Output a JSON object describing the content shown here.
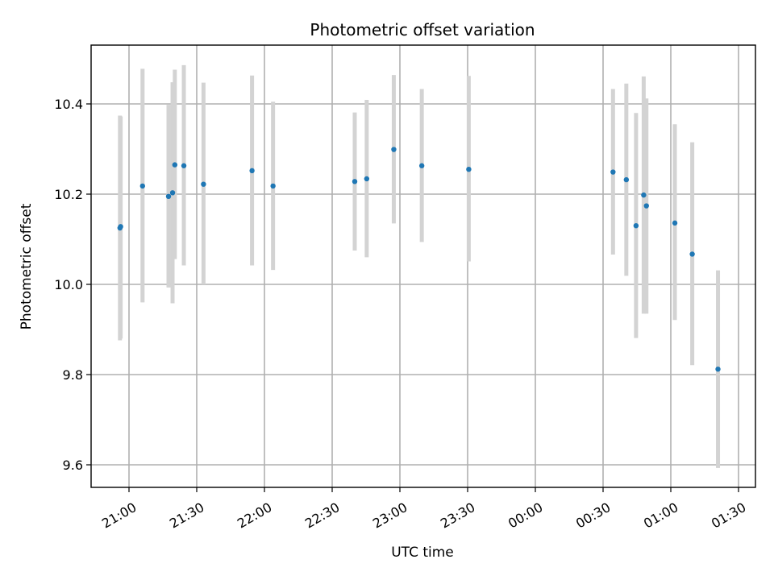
{
  "chart_data": {
    "type": "scatter",
    "title": "Photometric offset variation",
    "xlabel": "UTC time",
    "ylabel": "Photometric offset",
    "x_ticks": [
      {
        "t": 60,
        "label": "21:00"
      },
      {
        "t": 90,
        "label": "21:30"
      },
      {
        "t": 120,
        "label": "22:00"
      },
      {
        "t": 150,
        "label": "22:30"
      },
      {
        "t": 180,
        "label": "23:00"
      },
      {
        "t": 210,
        "label": "23:30"
      },
      {
        "t": 240,
        "label": "00:00"
      },
      {
        "t": 270,
        "label": "00:30"
      },
      {
        "t": 300,
        "label": "01:00"
      },
      {
        "t": 330,
        "label": "01:30"
      }
    ],
    "y_ticks": [
      {
        "v": 9.6,
        "label": "9.6"
      },
      {
        "v": 9.8,
        "label": "9.8"
      },
      {
        "v": 10.0,
        "label": "10.0"
      },
      {
        "v": 10.2,
        "label": "10.2"
      },
      {
        "v": 10.4,
        "label": "10.4"
      }
    ],
    "ylim": [
      9.55,
      10.53
    ],
    "grid": true,
    "series": [
      {
        "points": [
          {
            "t": 56.0,
            "y": 10.125,
            "lo": 9.876,
            "hi": 10.374
          },
          {
            "t": 56.3,
            "y": 10.128,
            "lo": 9.88,
            "hi": 10.372
          },
          {
            "t": 66.0,
            "y": 10.218,
            "lo": 9.96,
            "hi": 10.478
          },
          {
            "t": 77.5,
            "y": 10.195,
            "lo": 9.993,
            "hi": 10.398
          },
          {
            "t": 79.3,
            "y": 10.203,
            "lo": 9.958,
            "hi": 10.448
          },
          {
            "t": 80.3,
            "y": 10.265,
            "lo": 10.056,
            "hi": 10.476
          },
          {
            "t": 84.3,
            "y": 10.263,
            "lo": 10.042,
            "hi": 10.486
          },
          {
            "t": 93.0,
            "y": 10.222,
            "lo": 10.0,
            "hi": 10.447
          },
          {
            "t": 114.5,
            "y": 10.252,
            "lo": 10.042,
            "hi": 10.463
          },
          {
            "t": 123.8,
            "y": 10.218,
            "lo": 10.032,
            "hi": 10.405
          },
          {
            "t": 160.0,
            "y": 10.228,
            "lo": 10.075,
            "hi": 10.381
          },
          {
            "t": 165.3,
            "y": 10.234,
            "lo": 10.06,
            "hi": 10.409
          },
          {
            "t": 177.3,
            "y": 10.299,
            "lo": 10.135,
            "hi": 10.464
          },
          {
            "t": 189.7,
            "y": 10.263,
            "lo": 10.094,
            "hi": 10.433
          },
          {
            "t": 210.5,
            "y": 10.255,
            "lo": 10.051,
            "hi": 10.462
          },
          {
            "t": 274.4,
            "y": 10.249,
            "lo": 10.066,
            "hi": 10.433
          },
          {
            "t": 280.3,
            "y": 10.232,
            "lo": 10.019,
            "hi": 10.445
          },
          {
            "t": 284.6,
            "y": 10.13,
            "lo": 9.881,
            "hi": 10.38
          },
          {
            "t": 288.0,
            "y": 10.198,
            "lo": 9.935,
            "hi": 10.461
          },
          {
            "t": 289.2,
            "y": 10.174,
            "lo": 9.935,
            "hi": 10.412
          },
          {
            "t": 301.8,
            "y": 10.136,
            "lo": 9.921,
            "hi": 10.355
          },
          {
            "t": 309.5,
            "y": 10.067,
            "lo": 9.821,
            "hi": 10.315
          },
          {
            "t": 320.9,
            "y": 9.812,
            "lo": 9.593,
            "hi": 10.031
          }
        ]
      }
    ],
    "colors": {
      "point": "#1f77b4",
      "errorbar": "#d3d3d3",
      "grid": "#b0b0b0"
    }
  }
}
